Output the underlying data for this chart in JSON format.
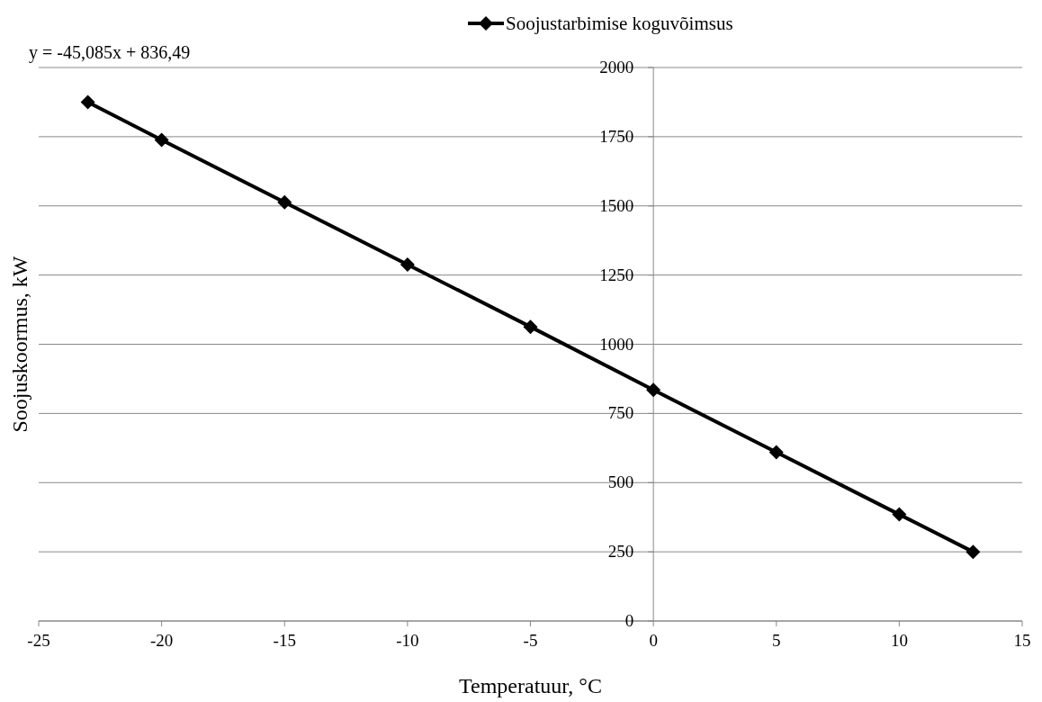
{
  "chart_data": {
    "type": "line",
    "xlabel": "Temperatuur, °C",
    "ylabel": "Soojuskoormus, kW",
    "x": [
      -23,
      -20,
      -15,
      -10,
      -5,
      0,
      5,
      10,
      13
    ],
    "series": [
      {
        "name": "Soojustarbimise koguvõimsus",
        "color": "#000000",
        "values": [
          1875,
          1738,
          1513,
          1288,
          1063,
          835,
          610,
          385,
          250
        ]
      }
    ],
    "xlim": [
      -25,
      15
    ],
    "xticks": [
      -25,
      -20,
      -15,
      -10,
      -5,
      0,
      5,
      10,
      15
    ],
    "ylim": [
      0,
      2000
    ],
    "yticks": [
      0,
      250,
      500,
      750,
      1000,
      1250,
      1500,
      1750,
      2000
    ],
    "grid": "y",
    "legend": "top",
    "marker": "diamond",
    "line_style": "solid",
    "annotations": [
      "y = -45,085x + 836,49"
    ]
  }
}
